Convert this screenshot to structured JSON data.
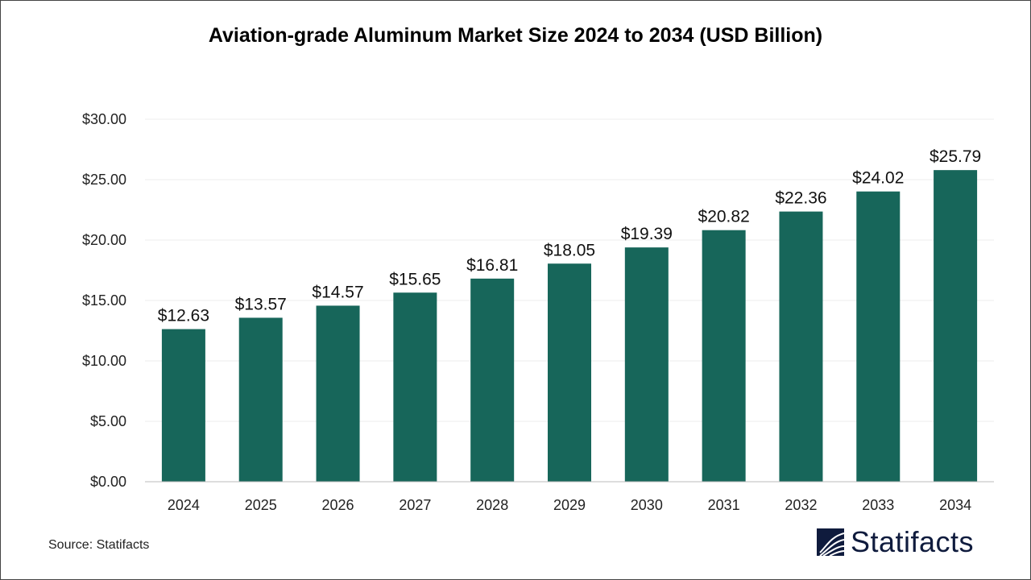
{
  "chart_data": {
    "type": "bar",
    "title": "Aviation-grade Aluminum Market Size 2024 to 2034 (USD Billion)",
    "categories": [
      "2024",
      "2025",
      "2026",
      "2027",
      "2028",
      "2029",
      "2030",
      "2031",
      "2032",
      "2033",
      "2034"
    ],
    "values": [
      12.63,
      13.57,
      14.57,
      15.65,
      16.81,
      18.05,
      19.39,
      20.82,
      22.36,
      24.02,
      25.79
    ],
    "data_labels": [
      "$12.63",
      "$13.57",
      "$14.57",
      "$15.65",
      "$16.81",
      "$18.05",
      "$19.39",
      "$20.82",
      "$22.36",
      "$24.02",
      "$25.79"
    ],
    "yticks": [
      "$0.00",
      "$5.00",
      "$10.00",
      "$15.00",
      "$20.00",
      "$25.00",
      "$30.00"
    ],
    "ylim": [
      0,
      30
    ],
    "xlabel": "",
    "ylabel": "",
    "grid": true,
    "bar_color": "#17665a"
  },
  "source": "Source: Statifacts",
  "logo": {
    "text": "Statifacts",
    "color": "#0f1b3d"
  }
}
